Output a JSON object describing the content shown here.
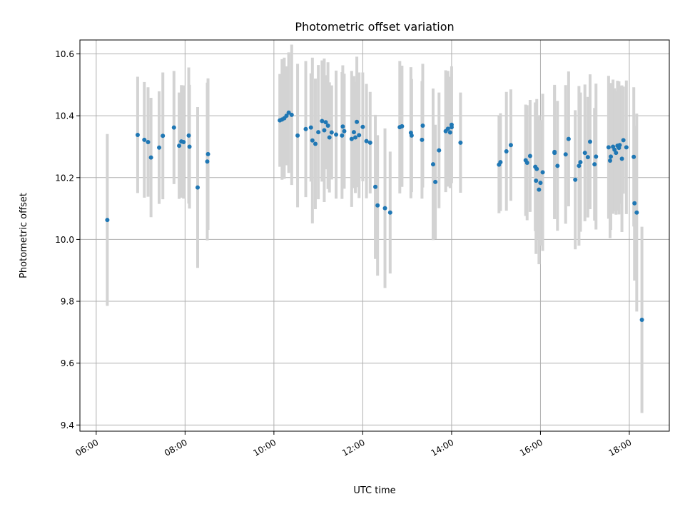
{
  "chart_data": {
    "type": "scatter",
    "title": "Photometric offset variation",
    "xlabel": "UTC time",
    "ylabel": "Photometric offset",
    "x_unit": "hours UTC",
    "xlim": [
      "05:38",
      "18:54"
    ],
    "ylim": [
      9.38,
      10.645
    ],
    "x_ticks": [
      "06:00",
      "08:00",
      "10:00",
      "12:00",
      "14:00",
      "16:00",
      "18:00"
    ],
    "y_ticks": [
      "9.4",
      "9.6",
      "9.8",
      "10.0",
      "10.2",
      "10.4",
      "10.6"
    ],
    "grid": true,
    "legend": "none",
    "colors": {
      "point": "#1f77b4",
      "errorbar": "#d3d3d3",
      "grid": "#b0b0b0"
    },
    "series": [
      {
        "x": [
          "06:15",
          "06:56",
          "07:05",
          "07:10",
          "07:14",
          "07:25",
          "07:30",
          "07:45",
          "07:52",
          "07:55",
          "07:58",
          "08:05",
          "08:06",
          "08:17",
          "08:30",
          "08:31",
          "10:08",
          "10:11",
          "10:14",
          "10:17",
          "10:20",
          "10:24",
          "10:32",
          "10:43",
          "10:50",
          "10:52",
          "10:56",
          "11:00",
          "11:05",
          "11:08",
          "11:10",
          "11:13",
          "11:15",
          "11:18",
          "11:24",
          "11:32",
          "11:33",
          "11:35",
          "11:45",
          "11:48",
          "11:50",
          "11:52",
          "11:55",
          "12:00",
          "12:05",
          "12:10",
          "12:17",
          "12:20",
          "12:30",
          "12:37",
          "12:50",
          "12:53",
          "13:05",
          "13:06",
          "13:20",
          "13:21",
          "13:35",
          "13:38",
          "13:43",
          "13:52",
          "13:55",
          "13:58",
          "14:00",
          "14:00",
          "14:12",
          "15:04",
          "15:06",
          "15:14",
          "15:20",
          "15:40",
          "15:42",
          "15:46",
          "15:53",
          "15:54",
          "15:55",
          "15:58",
          "16:00",
          "16:03",
          "16:19",
          "16:19",
          "16:23",
          "16:34",
          "16:38",
          "16:47",
          "16:52",
          "16:54",
          "17:00",
          "17:04",
          "17:07",
          "17:13",
          "17:15",
          "17:32",
          "17:34",
          "17:35",
          "17:38",
          "17:40",
          "17:42",
          "17:44",
          "17:46",
          "17:47",
          "17:50",
          "17:52",
          "17:56",
          "18:06",
          "18:07",
          "18:10",
          "18:17"
        ],
        "y": [
          10.063,
          10.338,
          10.322,
          10.315,
          10.265,
          10.297,
          10.335,
          10.362,
          10.303,
          10.317,
          10.315,
          10.336,
          10.3,
          10.168,
          10.252,
          10.276,
          10.385,
          10.388,
          10.392,
          10.4,
          10.41,
          10.403,
          10.336,
          10.357,
          10.362,
          10.32,
          10.309,
          10.347,
          10.383,
          10.353,
          10.379,
          10.368,
          10.33,
          10.346,
          10.339,
          10.336,
          10.365,
          10.35,
          10.325,
          10.347,
          10.33,
          10.38,
          10.337,
          10.364,
          10.318,
          10.313,
          10.17,
          10.11,
          10.101,
          10.087,
          10.363,
          10.366,
          10.345,
          10.336,
          10.322,
          10.368,
          10.243,
          10.186,
          10.288,
          10.35,
          10.358,
          10.346,
          10.371,
          10.363,
          10.313,
          10.242,
          10.25,
          10.285,
          10.305,
          10.256,
          10.248,
          10.27,
          10.235,
          10.19,
          10.228,
          10.161,
          10.183,
          10.217,
          10.28,
          10.283,
          10.238,
          10.275,
          10.325,
          10.193,
          10.238,
          10.25,
          10.28,
          10.266,
          10.316,
          10.243,
          10.268,
          10.298,
          10.255,
          10.268,
          10.3,
          10.29,
          10.28,
          10.303,
          10.296,
          10.305,
          10.261,
          10.321,
          10.298,
          10.267,
          10.117,
          10.087,
          9.74
        ],
        "yerr": [
          0.278,
          0.188,
          0.187,
          0.177,
          0.193,
          0.182,
          0.205,
          0.183,
          0.172,
          0.182,
          0.183,
          0.22,
          0.2,
          0.26,
          0.255,
          0.245,
          0.15,
          0.195,
          0.196,
          0.16,
          0.195,
          0.227,
          0.232,
          0.22,
          0.175,
          0.268,
          0.211,
          0.217,
          0.196,
          0.232,
          0.152,
          0.205,
          0.178,
          0.152,
          0.207,
          0.205,
          0.198,
          0.186,
          0.22,
          0.181,
          0.18,
          0.211,
          0.203,
          0.176,
          0.185,
          0.164,
          0.233,
          0.227,
          0.258,
          0.197,
          0.214,
          0.196,
          0.212,
          0.183,
          0.19,
          0.2,
          0.245,
          0.185,
          0.187,
          0.197,
          0.187,
          0.18,
          0.189,
          0.171,
          0.162,
          0.157,
          0.158,
          0.192,
          0.18,
          0.18,
          0.186,
          0.181,
          0.208,
          0.237,
          0.226,
          0.241,
          0.203,
          0.254,
          0.214,
          0.217,
          0.21,
          0.224,
          0.218,
          0.225,
          0.258,
          0.225,
          0.221,
          0.195,
          0.218,
          0.182,
          0.236,
          0.231,
          0.251,
          0.237,
          0.217,
          0.199,
          0.2,
          0.21,
          0.215,
          0.19,
          0.237,
          0.173,
          0.216,
          0.225,
          0.25,
          0.32,
          0.301
        ]
      }
    ]
  }
}
